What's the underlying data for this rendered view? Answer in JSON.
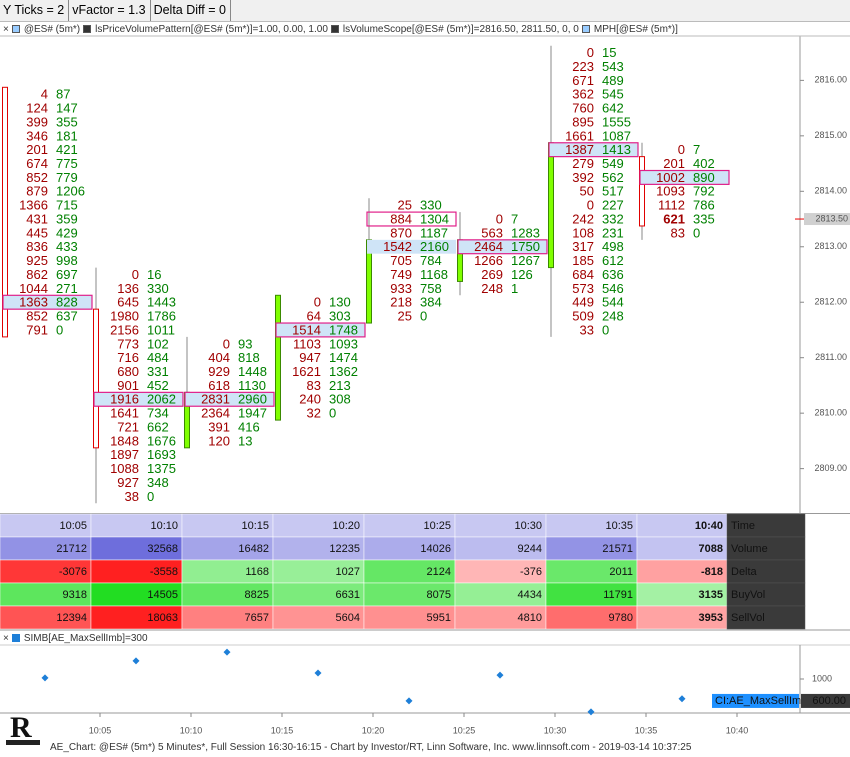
{
  "toolbar": {
    "items": [
      "Y Ticks = 2",
      "vFactor = 1.3",
      "Delta Diff = 0"
    ]
  },
  "legend": {
    "items": [
      "@ES# (5m*)",
      "lsPriceVolumePattern[@ES# (5m*)]=1.00, 0.00, 1.00",
      "lsVolumeScope[@ES# (5m*)]=2816.50, 2811.50, 0, 0",
      "MPH[@ES# (5m*)]"
    ]
  },
  "chart": {
    "ylim": [
      2808.2,
      2816.8
    ],
    "tick_size": 0.25,
    "ticks": [
      {
        "value": 2816,
        "label": "2816.00"
      },
      {
        "value": 2815,
        "label": "2815.00"
      },
      {
        "value": 2814,
        "label": "2814.00"
      },
      {
        "value": 2813,
        "label": "2813.00"
      },
      {
        "value": 2812,
        "label": "2812.00"
      },
      {
        "value": 2811,
        "label": "2811.00"
      },
      {
        "value": 2810,
        "label": "2810.00"
      },
      {
        "value": 2809,
        "label": "2809.00"
      }
    ],
    "last_price": {
      "value": 2813.5,
      "label": "2813.50"
    },
    "up_color": "#80ff00",
    "down_color": "#e00000",
    "bid_color": "#a00000",
    "ask_color": "#008000",
    "bars": [
      {
        "open": 2815.75,
        "high": 2815.75,
        "low": 2811.5,
        "close": 2811.5,
        "poc": 15,
        "boxed": 15,
        "rows": [
          [
            4,
            87
          ],
          [
            124,
            147
          ],
          [
            399,
            355
          ],
          [
            346,
            181
          ],
          [
            201,
            421
          ],
          [
            674,
            775
          ],
          [
            852,
            779
          ],
          [
            879,
            1206
          ],
          [
            1366,
            715
          ],
          [
            431,
            359
          ],
          [
            445,
            429
          ],
          [
            836,
            433
          ],
          [
            925,
            998
          ],
          [
            862,
            697
          ],
          [
            1044,
            271
          ],
          [
            1363,
            828
          ],
          [
            852,
            637
          ],
          [
            791,
            0
          ]
        ]
      },
      {
        "open": 2811.75,
        "high": 2812.5,
        "low": 2808.5,
        "close": 2809.5,
        "poc": 9,
        "boxed": 9,
        "rows": [
          [
            0,
            16
          ],
          [
            136,
            330
          ],
          [
            645,
            1443
          ],
          [
            1980,
            1786
          ],
          [
            2156,
            1011
          ],
          [
            773,
            102
          ],
          [
            716,
            484
          ],
          [
            680,
            331
          ],
          [
            901,
            452
          ],
          [
            1916,
            2062
          ],
          [
            1641,
            734
          ],
          [
            721,
            662
          ],
          [
            1848,
            1676
          ],
          [
            1897,
            1693
          ],
          [
            1088,
            1375
          ],
          [
            927,
            348
          ],
          [
            38,
            0
          ]
        ]
      },
      {
        "open": 2809.5,
        "high": 2811.25,
        "low": 2809.5,
        "close": 2810.25,
        "poc": 4,
        "boxed": 4,
        "rows": [
          [
            0,
            93
          ],
          [
            404,
            818
          ],
          [
            929,
            1448
          ],
          [
            618,
            1130
          ],
          [
            2831,
            2960
          ],
          [
            2364,
            1947
          ],
          [
            391,
            416
          ],
          [
            120,
            13
          ]
        ]
      },
      {
        "open": 2810,
        "high": 2812,
        "low": 2810,
        "close": 2812,
        "poc": 2,
        "boxed": 2,
        "rows": [
          [
            0,
            130
          ],
          [
            64,
            303
          ],
          [
            1514,
            1748
          ],
          [
            1103,
            1093
          ],
          [
            947,
            1474
          ],
          [
            1621,
            1362
          ],
          [
            83,
            213
          ],
          [
            240,
            308
          ],
          [
            32,
            0
          ]
        ]
      },
      {
        "open": 2811.75,
        "high": 2813.75,
        "low": 2811.75,
        "close": 2813,
        "poc": 3,
        "boxed": 1,
        "rows": [
          [
            25,
            330
          ],
          [
            884,
            1304
          ],
          [
            870,
            1187
          ],
          [
            1542,
            2160
          ],
          [
            705,
            784
          ],
          [
            749,
            1168
          ],
          [
            933,
            758
          ],
          [
            218,
            384
          ],
          [
            25,
            0
          ]
        ]
      },
      {
        "open": 2812.5,
        "high": 2813.5,
        "low": 2812.25,
        "close": 2813,
        "poc": 2,
        "boxed": 2,
        "rows": [
          [
            0,
            7
          ],
          [
            563,
            1283
          ],
          [
            2464,
            1750
          ],
          [
            1266,
            1267
          ],
          [
            269,
            126
          ],
          [
            248,
            1
          ]
        ]
      },
      {
        "open": 2812.75,
        "high": 2816.5,
        "low": 2811.5,
        "close": 2814.75,
        "poc": 7,
        "boxed": 7,
        "rows": [
          [
            0,
            15
          ],
          [
            223,
            543
          ],
          [
            671,
            489
          ],
          [
            362,
            545
          ],
          [
            760,
            642
          ],
          [
            895,
            1555
          ],
          [
            1661,
            1087
          ],
          [
            1387,
            1413
          ],
          [
            279,
            549
          ],
          [
            392,
            562
          ],
          [
            50,
            517
          ],
          [
            0,
            227
          ],
          [
            242,
            332
          ],
          [
            108,
            231
          ],
          [
            317,
            498
          ],
          [
            185,
            612
          ],
          [
            684,
            636
          ],
          [
            573,
            546
          ],
          [
            449,
            544
          ],
          [
            509,
            248
          ],
          [
            33,
            0
          ]
        ]
      },
      {
        "open": 2814.5,
        "high": 2814.75,
        "low": 2813.25,
        "close": 2813.5,
        "poc": 2,
        "boxed": 2,
        "bold_cell": [
          5,
          0
        ],
        "rows": [
          [
            0,
            7
          ],
          [
            201,
            402
          ],
          [
            1002,
            890
          ],
          [
            1093,
            792
          ],
          [
            1112,
            786
          ],
          [
            621,
            335
          ],
          [
            83,
            0
          ]
        ]
      }
    ]
  },
  "table": {
    "rows": [
      {
        "label": "Time",
        "color": "#c8c8f2",
        "values": [
          "10:05",
          "10:10",
          "10:15",
          "10:20",
          "10:25",
          "10:30",
          "10:35",
          "10:40"
        ]
      },
      {
        "label": "Volume",
        "color": "#6e6edc",
        "values": [
          21712,
          32568,
          16482,
          12235,
          14026,
          9244,
          21571,
          7088
        ]
      },
      {
        "label": "Delta",
        "color": "#22dd22",
        "negative_color": "#ff2020",
        "values": [
          -3076,
          -3558,
          1168,
          1027,
          2124,
          -376,
          2011,
          -818
        ]
      },
      {
        "label": "BuyVol",
        "color": "#22dd22",
        "values": [
          9318,
          14505,
          8825,
          6631,
          8075,
          4434,
          11791,
          3135
        ]
      },
      {
        "label": "SellVol",
        "color": "#ff2020",
        "values": [
          12394,
          18063,
          7657,
          5604,
          5951,
          4810,
          9780,
          3953
        ]
      }
    ]
  },
  "indicator": {
    "legend": "SIMB[AE_MaxSellImb]=300",
    "color": "#1e7fd8",
    "ylim": [
      380,
      1620
    ],
    "ticks": [
      1000
    ],
    "values": [
      1020,
      1330,
      1490,
      1110,
      600,
      1070,
      400,
      640
    ],
    "marker": {
      "name": "CI:AE_MaxSellIm",
      "value": 600,
      "label": "600.00"
    }
  },
  "time_axis": [
    "10:05",
    "10:10",
    "10:15",
    "10:20",
    "10:25",
    "10:30",
    "10:35",
    "10:40"
  ],
  "footer": "AE_Chart: @ES# (5m*) 5 Minutes*, Full Session 16:30-16:15 - Chart by Investor/RT, Linn Software, Inc. www.linnsoft.com - 2019-03-14 10:37:25"
}
